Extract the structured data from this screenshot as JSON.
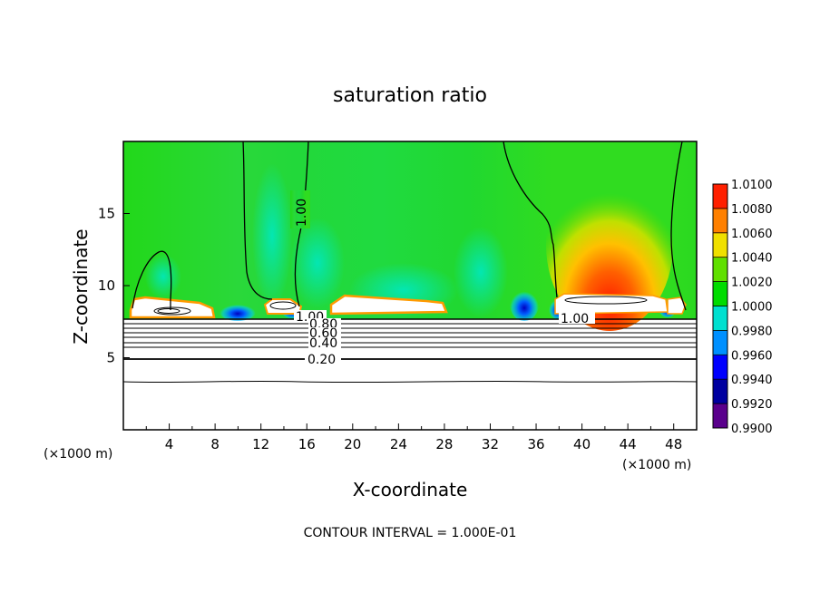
{
  "chart_data": {
    "type": "heatmap",
    "title": "saturation ratio",
    "xlabel": "X-coordinate",
    "ylabel": "Z-coordinate",
    "x_unit": "(×1000 m)",
    "xlim": [
      0,
      50
    ],
    "ylim": [
      0,
      20
    ],
    "x_ticks": [
      "4",
      "8",
      "12",
      "16",
      "20",
      "24",
      "28",
      "32",
      "36",
      "40",
      "44",
      "48"
    ],
    "y_ticks": [
      "5",
      "10",
      "15"
    ],
    "footer": "CONTOUR INTERVAL = 1.000E-01",
    "colorbar": {
      "labels": [
        "0.9900",
        "0.9920",
        "0.9940",
        "0.9960",
        "0.9980",
        "1.0000",
        "1.0020",
        "1.0040",
        "1.0060",
        "1.0080",
        "1.0100"
      ],
      "colors": [
        "#5a008c",
        "#0000a0",
        "#0000ff",
        "#0090ff",
        "#00e0d0",
        "#00dc00",
        "#60e000",
        "#f0e000",
        "#ff8000",
        "#ff2000",
        "#ff9090"
      ]
    },
    "contour_labels": [
      "1.00",
      "0.80",
      "0.60",
      "0.40",
      "0.20",
      "1.00",
      "1.00"
    ],
    "grid": false,
    "legend": "right"
  }
}
